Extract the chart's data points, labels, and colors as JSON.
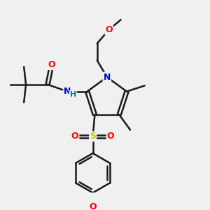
{
  "bg_color": "#f0f0f0",
  "atom_color_N": "#0000cc",
  "atom_color_O": "#ff0000",
  "atom_color_S": "#cccc00",
  "atom_color_H": "#008080",
  "bond_color": "#1a1a1a",
  "bond_width": 1.8,
  "label_fontsize": 9,
  "figsize": [
    3.0,
    3.0
  ],
  "dpi": 100,
  "xlim": [
    0,
    10
  ],
  "ylim": [
    0,
    10
  ]
}
